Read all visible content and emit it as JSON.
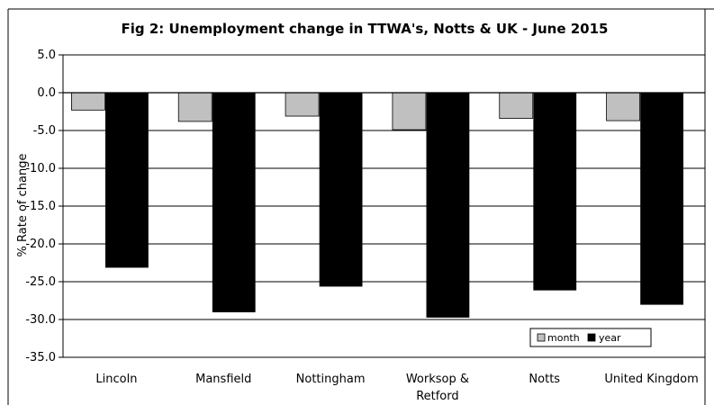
{
  "chart_data": {
    "type": "bar",
    "title": "Fig 2:  Unemployment change in TTWA's, Notts & UK - June 2015",
    "ylabel": "% Rate of change",
    "xlabel": "",
    "categories": [
      "Lincoln",
      "Mansfield",
      "Nottingham",
      "Worksop & Retford",
      "Notts",
      "United Kingdom"
    ],
    "category_lines": [
      [
        "Lincoln"
      ],
      [
        "Mansfield"
      ],
      [
        "Nottingham"
      ],
      [
        "Worksop &",
        "Retford"
      ],
      [
        "Notts"
      ],
      [
        "United Kingdom"
      ]
    ],
    "series": [
      {
        "name": "month",
        "color": "#c0c0c0",
        "values": [
          -2.3,
          -3.8,
          -3.1,
          -4.9,
          -3.4,
          -3.7
        ]
      },
      {
        "name": "year",
        "color": "#000000",
        "values": [
          -23.1,
          -29.0,
          -25.6,
          -29.7,
          -26.1,
          -28.0
        ]
      }
    ],
    "ylim": [
      -35,
      5
    ],
    "yticks": [
      5,
      0,
      -5,
      -10,
      -15,
      -20,
      -25,
      -30,
      -35
    ],
    "ytick_labels": [
      "5.0",
      "0.0",
      "-5.0",
      "-10.0",
      "-15.0",
      "-20.0",
      "-25.0",
      "-30.0",
      "-35.0"
    ],
    "grid": true,
    "legend_position": "bottom-right"
  }
}
